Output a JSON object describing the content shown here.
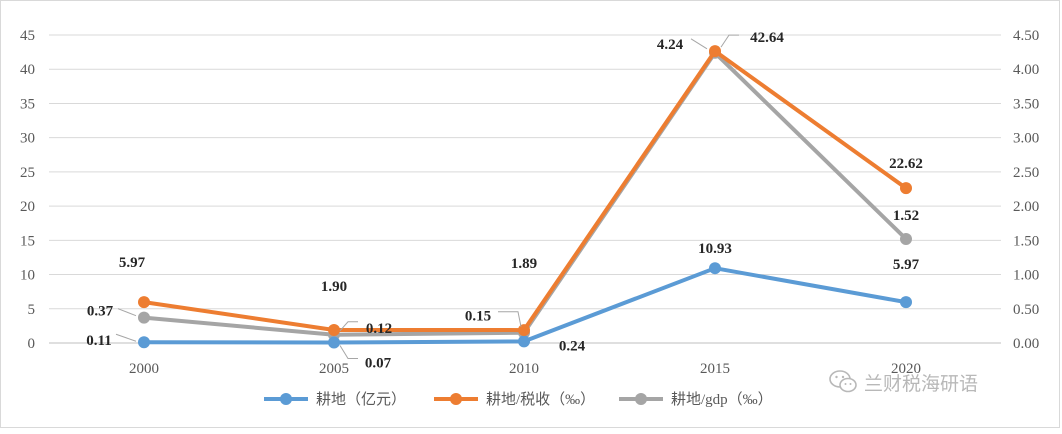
{
  "chart_data": {
    "type": "line",
    "categories": [
      "2000",
      "2005",
      "2010",
      "2015",
      "2020"
    ],
    "left_axis": {
      "ticks": [
        "0",
        "5",
        "10",
        "15",
        "20",
        "25",
        "30",
        "35",
        "40",
        "45"
      ],
      "ylim": [
        0,
        45
      ]
    },
    "right_axis": {
      "ticks": [
        "0.00",
        "0.50",
        "1.00",
        "1.50",
        "2.00",
        "2.50",
        "3.00",
        "3.50",
        "4.00",
        "4.50"
      ],
      "ylim": [
        0,
        4.5
      ]
    },
    "grid": true,
    "legend_position": "bottom",
    "series": [
      {
        "name": "耕地（亿元）",
        "axis": "left",
        "color": "#5b9bd5",
        "values": [
          0.11,
          0.07,
          0.24,
          10.93,
          5.97
        ],
        "labels": [
          "0.11",
          "0.07",
          "0.24",
          "10.93",
          "5.97"
        ]
      },
      {
        "name": "耕地/税收（‰）",
        "axis": "left",
        "color": "#ed7d31",
        "values": [
          5.97,
          1.9,
          1.89,
          42.64,
          22.62
        ],
        "labels": [
          "5.97",
          "1.90",
          "1.89",
          "42.64",
          "22.62"
        ]
      },
      {
        "name": "耕地/gdp（‰）",
        "axis": "right",
        "color": "#a5a5a5",
        "values": [
          0.37,
          0.12,
          0.15,
          4.24,
          1.52
        ],
        "labels": [
          "0.37",
          "0.12",
          "0.15",
          "4.24",
          "1.52"
        ]
      }
    ]
  },
  "watermark": {
    "text": "兰财税海研语"
  }
}
